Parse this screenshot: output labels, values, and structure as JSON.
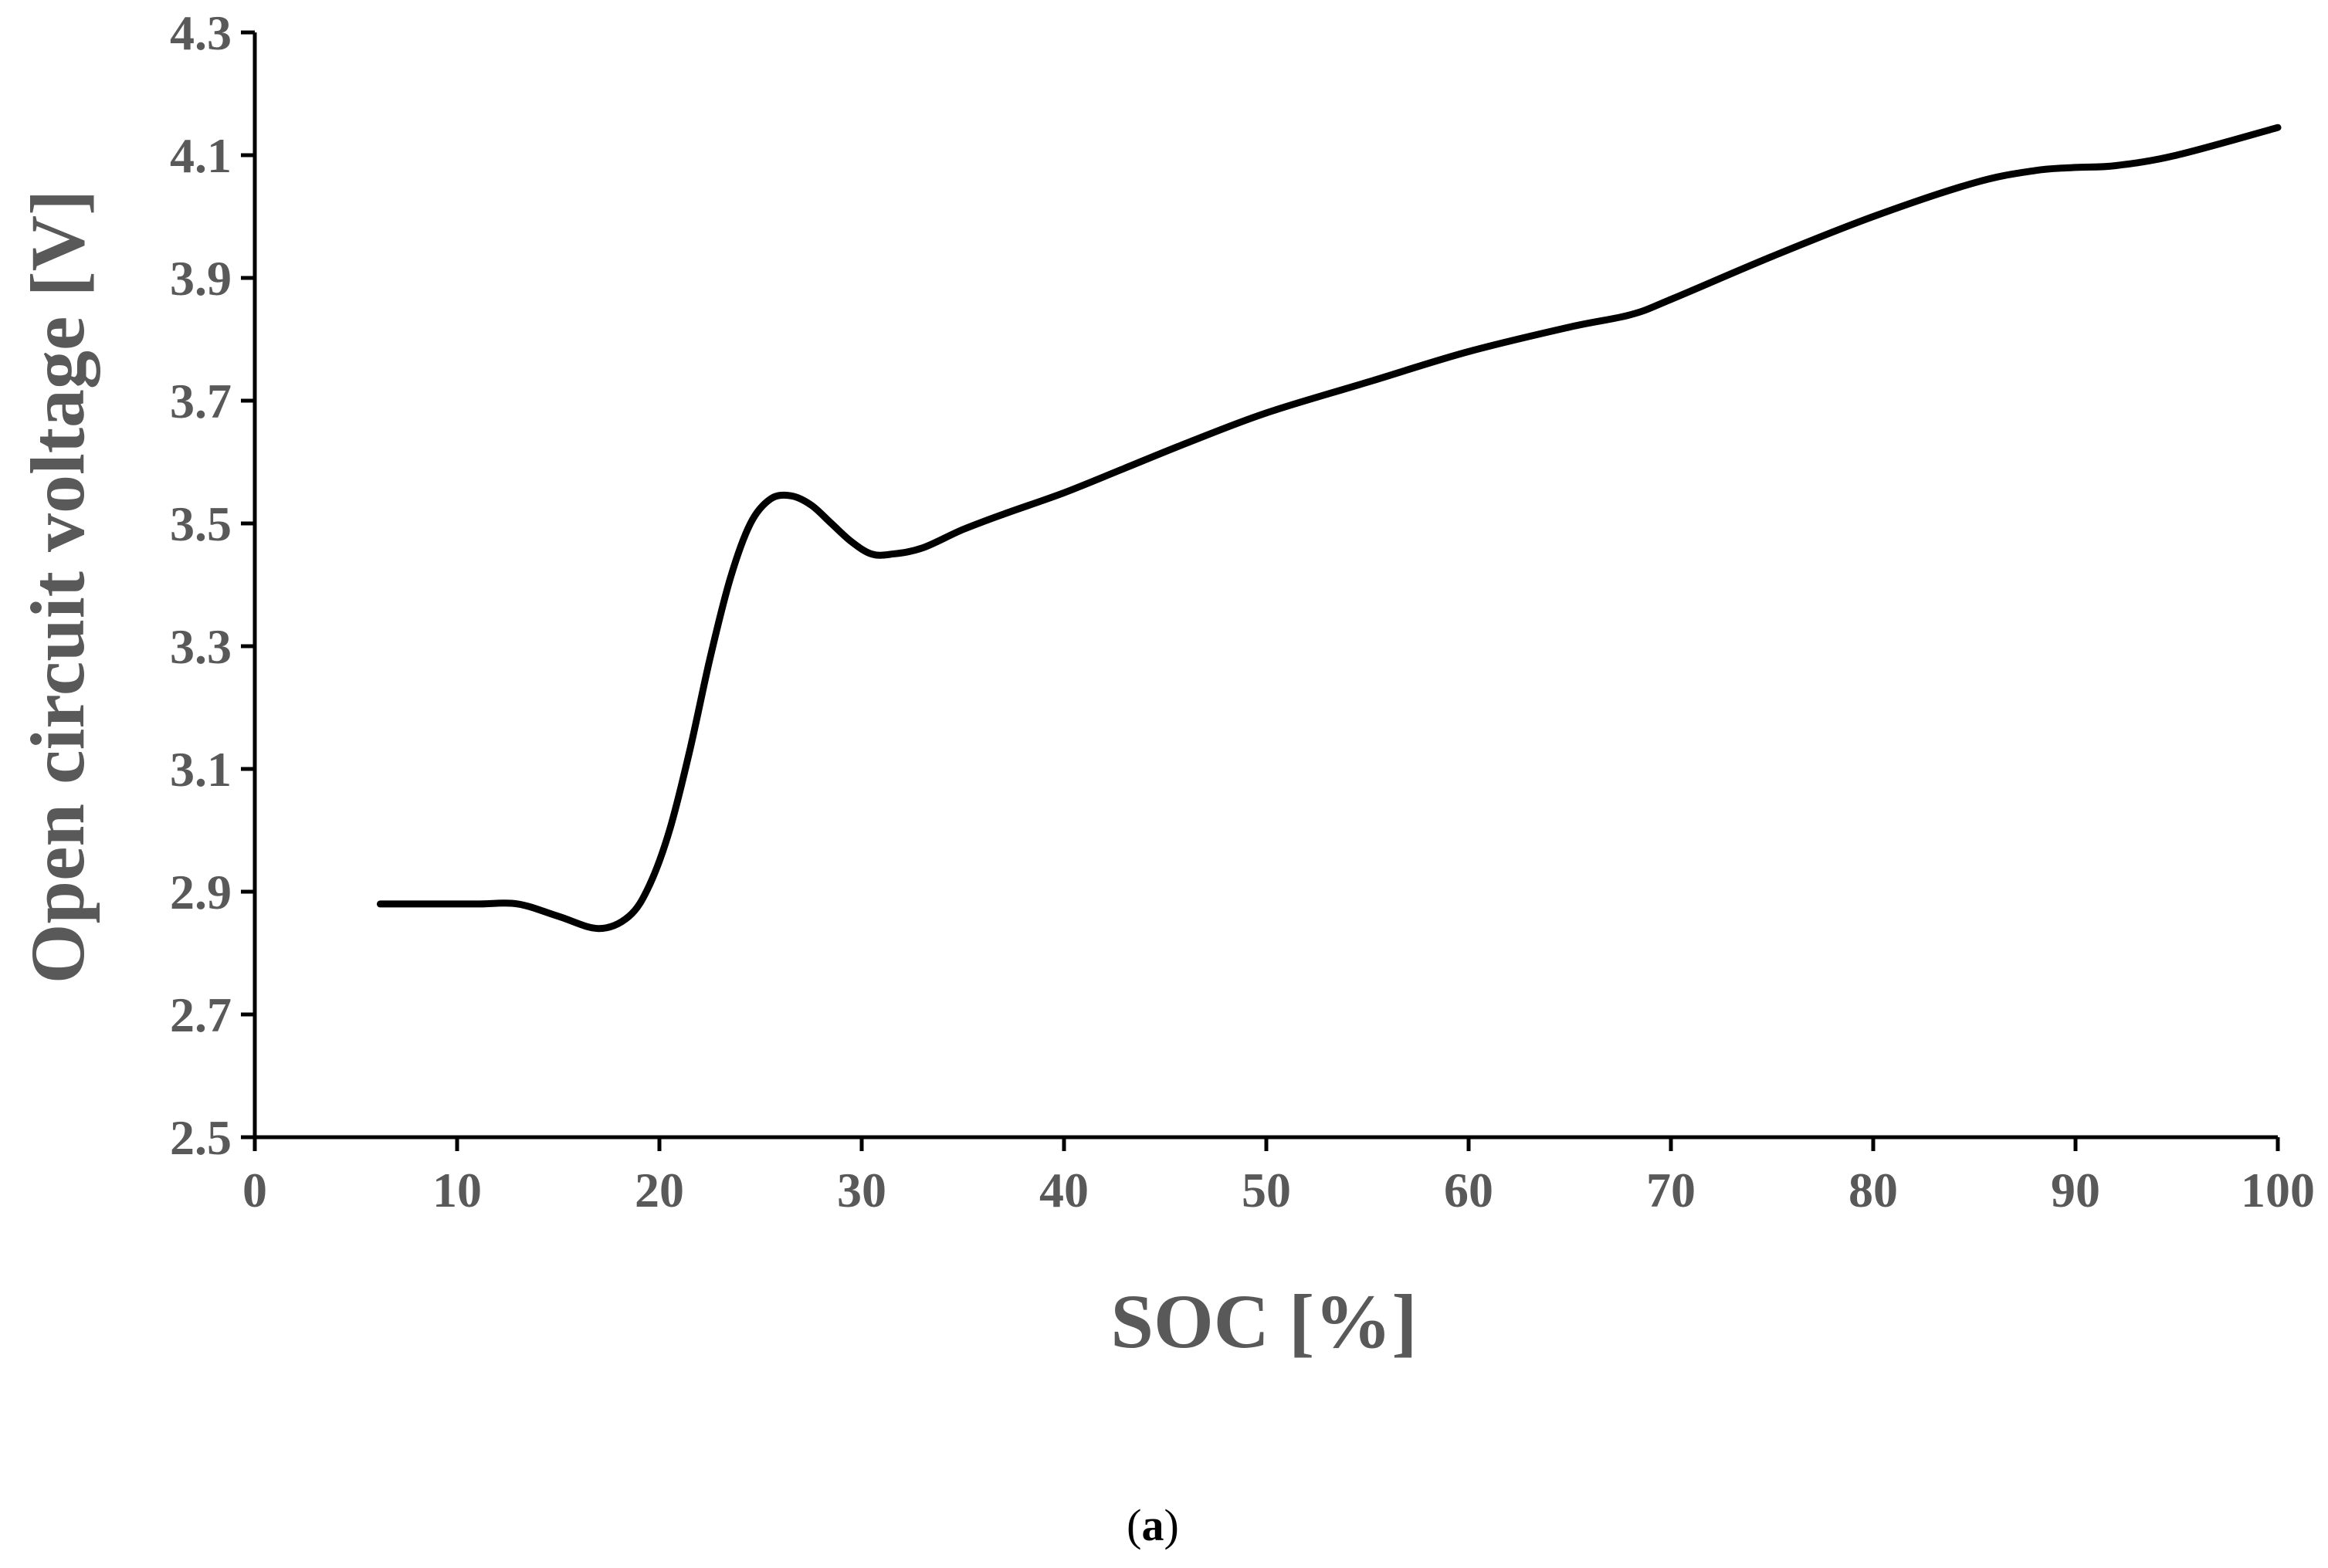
{
  "chart_data": {
    "type": "line",
    "title": "",
    "xlabel": "SOC [%]",
    "ylabel": "Open circuit voltage [V]",
    "xlim": [
      0,
      100
    ],
    "ylim": [
      2.5,
      4.3
    ],
    "x_ticks": [
      "0",
      "10",
      "20",
      "30",
      "40",
      "50",
      "60",
      "70",
      "80",
      "90",
      "100"
    ],
    "y_ticks": [
      "2.5",
      "2.7",
      "2.9",
      "3.1",
      "3.3",
      "3.5",
      "3.7",
      "3.9",
      "4.1",
      "4.3"
    ],
    "grid": false,
    "legend": "none",
    "series": [
      {
        "color": "#000000",
        "x": [
          6.2,
          9,
          11,
          13,
          15,
          17,
          18.5,
          19.5,
          20.5,
          21.5,
          22.5,
          23.5,
          24.5,
          25.5,
          26.5,
          27.5,
          28.5,
          29.5,
          30.5,
          31.5,
          33,
          35,
          37,
          40,
          43,
          46,
          50,
          55,
          60,
          65,
          68,
          70,
          75,
          80,
          85,
          88,
          90,
          92,
          95,
          100
        ],
        "y": [
          2.88,
          2.88,
          2.88,
          2.88,
          2.86,
          2.84,
          2.86,
          2.91,
          3.0,
          3.13,
          3.28,
          3.41,
          3.5,
          3.54,
          3.545,
          3.53,
          3.5,
          3.47,
          3.45,
          3.45,
          3.46,
          3.49,
          3.515,
          3.55,
          3.59,
          3.63,
          3.68,
          3.73,
          3.78,
          3.82,
          3.84,
          3.865,
          3.935,
          4.0,
          4.055,
          4.075,
          4.08,
          4.083,
          4.1,
          4.145
        ]
      }
    ]
  },
  "caption": {
    "open": "(",
    "letter": "a",
    "close": ")"
  }
}
